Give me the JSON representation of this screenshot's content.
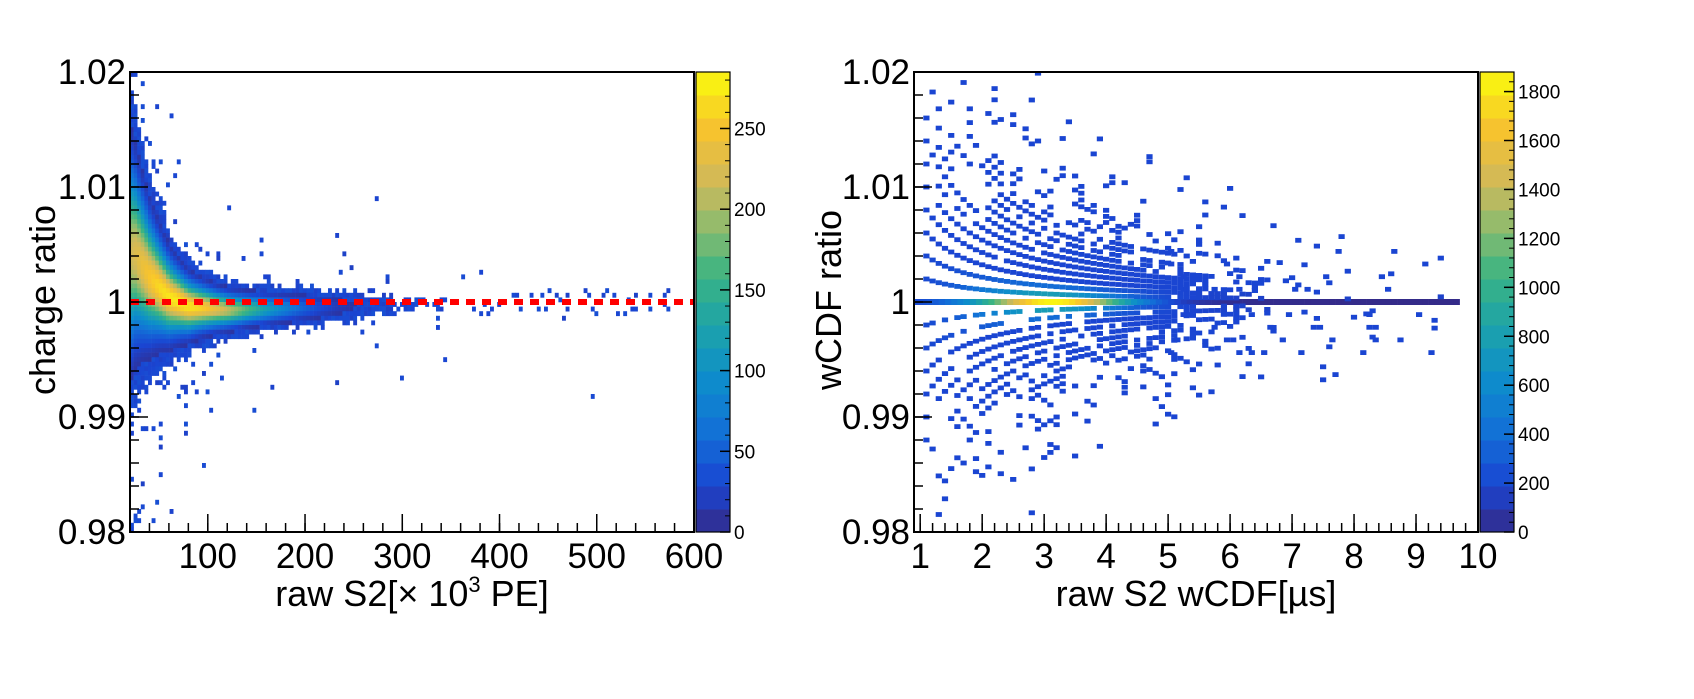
{
  "chart_data": [
    {
      "type": "heatmap",
      "title": "",
      "xlabel_prefix": "raw S2[",
      "xlabel_times": "×",
      "xlabel_mid": " 10",
      "xlabel_sup": "3",
      "xlabel_suffix": " PE]",
      "ylabel": "charge ratio",
      "xlim": [
        20,
        600
      ],
      "ylim": [
        0.98,
        1.02
      ],
      "x_ticks": [
        100,
        200,
        300,
        400,
        500,
        600
      ],
      "x_tick_labels": [
        "100",
        "200",
        "300",
        "400",
        "500",
        "600"
      ],
      "y_ticks": [
        0.98,
        0.99,
        1,
        1.01,
        1.02
      ],
      "y_tick_labels": [
        "0.98",
        "0.99",
        "1",
        "1.01",
        "1.02"
      ],
      "colorbar": {
        "range": [
          0,
          285
        ],
        "ticks": [
          0,
          50,
          100,
          150,
          200,
          250
        ],
        "tick_labels": [
          "0",
          "50",
          "100",
          "150",
          "200",
          "250"
        ]
      },
      "reference_line": {
        "y": 1.0,
        "style": "dashed",
        "color": "#ff0000"
      },
      "distribution": {
        "ridge_points": [
          [
            25,
            1.0042
          ],
          [
            40,
            1.0022
          ],
          [
            60,
            1.0004
          ],
          [
            80,
            0.9996
          ],
          [
            120,
            0.9993
          ],
          [
            200,
            0.9995
          ],
          [
            300,
            0.9998
          ],
          [
            400,
            1.0
          ]
        ],
        "peak_x": 70,
        "peak_y": 0.9997,
        "peak_count": 270,
        "core_x_range": [
          20,
          380
        ],
        "outlier_x_max": 575,
        "outlier_y_range": [
          0.981,
          1.02
        ]
      }
    },
    {
      "type": "heatmap",
      "title": "",
      "xlabel_prefix": "raw S2 wCDF[",
      "xlabel_mu": "µ",
      "xlabel_suffix": "s]",
      "ylabel": "wCDF ratio",
      "xlim": [
        0.9,
        10
      ],
      "ylim": [
        0.98,
        1.02
      ],
      "x_ticks": [
        1,
        2,
        3,
        4,
        5,
        6,
        7,
        8,
        9,
        10
      ],
      "x_tick_labels": [
        "1",
        "2",
        "3",
        "4",
        "5",
        "6",
        "7",
        "8",
        "9",
        "10"
      ],
      "y_ticks": [
        0.98,
        0.99,
        1,
        1.01,
        1.02
      ],
      "y_tick_labels": [
        "0.98",
        "0.99",
        "1",
        "1.01",
        "1.02"
      ],
      "colorbar": {
        "range": [
          0,
          1880
        ],
        "ticks": [
          0,
          200,
          400,
          600,
          800,
          1000,
          1200,
          1400,
          1600,
          1800
        ],
        "tick_labels": [
          "0",
          "200",
          "400",
          "600",
          "800",
          "1000",
          "1200",
          "1400",
          "1600",
          "1800"
        ]
      },
      "distribution": {
        "central_line_y": 1.0,
        "central_line_x_range": [
          0.9,
          9.7
        ],
        "peak_x": 3.1,
        "peak_count": 1800,
        "quantized_bands": "curved bands converging on the ratio-1 line, density decreasing with wCDF",
        "x_range_of_points": [
          1.2,
          9.8
        ]
      }
    }
  ]
}
